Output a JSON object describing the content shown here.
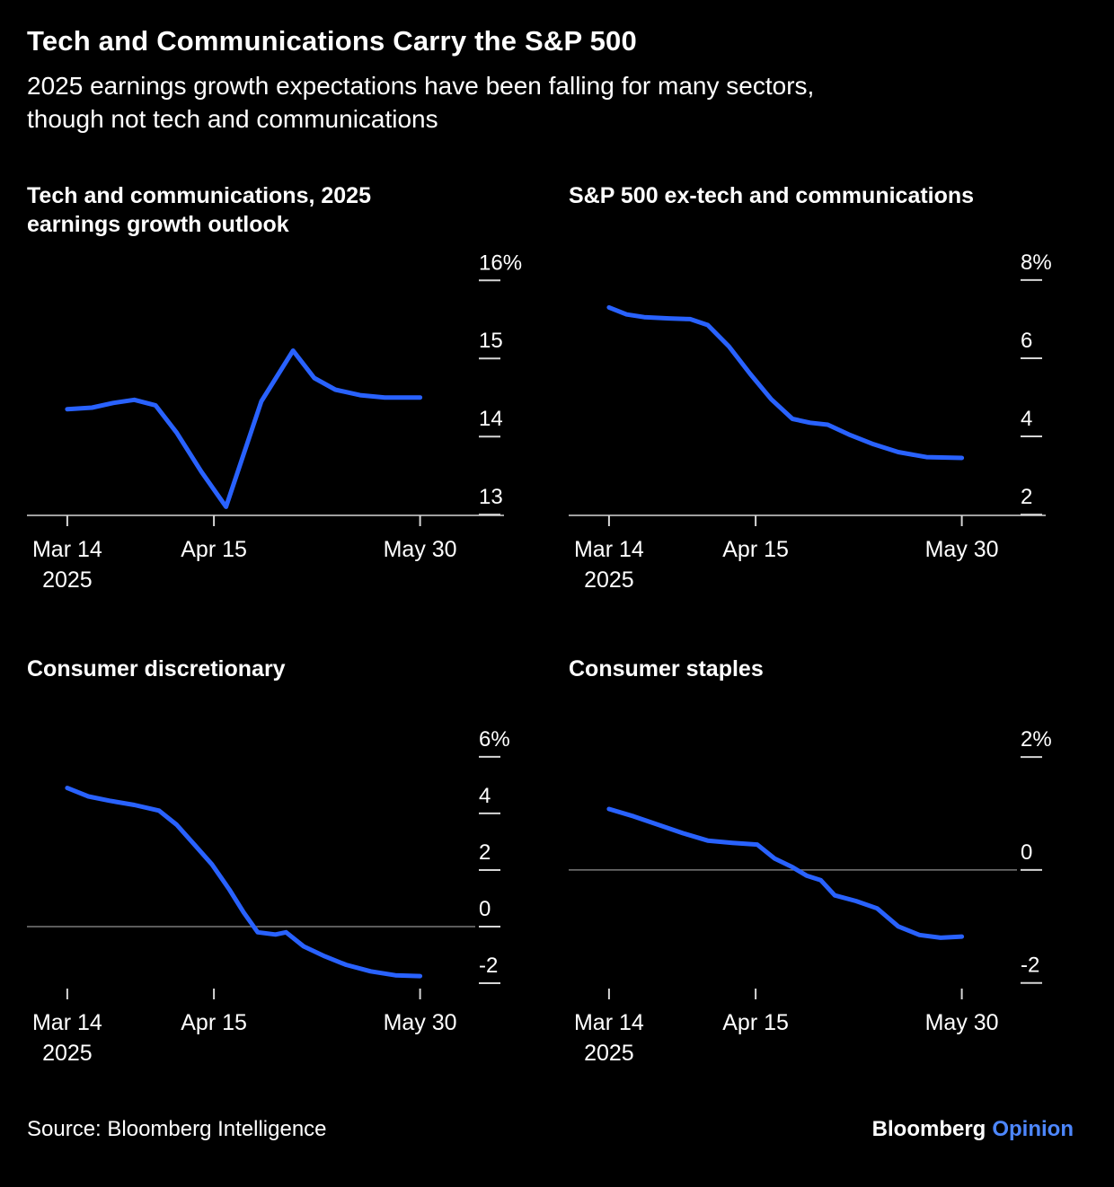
{
  "header": {
    "title": "Tech and Communications Carry the S&P 500",
    "subtitle": "2025 earnings growth expectations have been falling for many sectors,\nthough not tech and communications"
  },
  "footer": {
    "source": "Source: Bloomberg Intelligence",
    "brand": "Bloomberg",
    "brand_suffix": "Opinion"
  },
  "colors": {
    "background": "#000000",
    "text": "#ffffff",
    "line": "#2962ff",
    "axis": "#d6d6d6",
    "zero_line": "#7a7a7a",
    "brand_accent": "#4d87ff"
  },
  "chart_data": [
    {
      "type": "line",
      "title": "Tech and communications, 2025\nearnings growth outlook",
      "y_ticks": [
        {
          "value": 16,
          "label": "16%"
        },
        {
          "value": 15,
          "label": "15"
        },
        {
          "value": 14,
          "label": "14"
        },
        {
          "value": 13,
          "label": "13"
        }
      ],
      "ylim": [
        12.99,
        16.44
      ],
      "x_ticks": [
        {
          "t": 0,
          "lines": [
            "Mar 14",
            "2025"
          ]
        },
        {
          "t": 0.4156,
          "lines": [
            "Apr 15"
          ]
        },
        {
          "t": 1,
          "lines": [
            "May 30"
          ]
        }
      ],
      "bottom_axis": true,
      "zero_line": false,
      "points": [
        [
          0,
          14.35
        ],
        [
          0.07,
          14.37
        ],
        [
          0.13,
          14.43
        ],
        [
          0.19,
          14.47
        ],
        [
          0.25,
          14.4
        ],
        [
          0.31,
          14.05
        ],
        [
          0.38,
          13.55
        ],
        [
          0.45,
          13.1
        ],
        [
          0.55,
          14.45
        ],
        [
          0.64,
          15.1
        ],
        [
          0.7,
          14.75
        ],
        [
          0.76,
          14.6
        ],
        [
          0.83,
          14.53
        ],
        [
          0.9,
          14.5
        ],
        [
          1,
          14.5
        ]
      ]
    },
    {
      "type": "line",
      "title": "S&P 500 ex-tech and communications",
      "y_ticks": [
        {
          "value": 8,
          "label": "8%"
        },
        {
          "value": 6,
          "label": "6"
        },
        {
          "value": 4,
          "label": "4"
        },
        {
          "value": 2,
          "label": "2"
        }
      ],
      "ylim": [
        1.98,
        8.87
      ],
      "x_ticks": [
        {
          "t": 0,
          "lines": [
            "Mar 14",
            "2025"
          ]
        },
        {
          "t": 0.4156,
          "lines": [
            "Apr 15"
          ]
        },
        {
          "t": 1,
          "lines": [
            "May 30"
          ]
        }
      ],
      "bottom_axis": true,
      "zero_line": false,
      "points": [
        [
          0,
          7.3
        ],
        [
          0.05,
          7.12
        ],
        [
          0.1,
          7.05
        ],
        [
          0.17,
          7.02
        ],
        [
          0.23,
          7.0
        ],
        [
          0.28,
          6.85
        ],
        [
          0.34,
          6.3
        ],
        [
          0.4,
          5.6
        ],
        [
          0.46,
          4.95
        ],
        [
          0.52,
          4.45
        ],
        [
          0.57,
          4.35
        ],
        [
          0.62,
          4.3
        ],
        [
          0.68,
          4.05
        ],
        [
          0.75,
          3.8
        ],
        [
          0.82,
          3.6
        ],
        [
          0.9,
          3.47
        ],
        [
          1,
          3.45
        ]
      ]
    },
    {
      "type": "line",
      "title": "Consumer discretionary",
      "y_ticks": [
        {
          "value": 6,
          "label": "6%"
        },
        {
          "value": 4,
          "label": "4"
        },
        {
          "value": 2,
          "label": "2"
        },
        {
          "value": 0,
          "label": "0"
        },
        {
          "value": -2,
          "label": "-2"
        }
      ],
      "ylim": [
        -2.19,
        7.33
      ],
      "x_ticks": [
        {
          "t": 0,
          "lines": [
            "Mar 14",
            "2025"
          ]
        },
        {
          "t": 0.4156,
          "lines": [
            "Apr 15"
          ]
        },
        {
          "t": 1,
          "lines": [
            "May 30"
          ]
        }
      ],
      "bottom_axis": false,
      "zero_line": true,
      "points": [
        [
          0,
          4.9
        ],
        [
          0.06,
          4.6
        ],
        [
          0.12,
          4.45
        ],
        [
          0.19,
          4.3
        ],
        [
          0.26,
          4.1
        ],
        [
          0.31,
          3.6
        ],
        [
          0.36,
          2.9
        ],
        [
          0.41,
          2.2
        ],
        [
          0.46,
          1.3
        ],
        [
          0.5,
          0.5
        ],
        [
          0.54,
          -0.2
        ],
        [
          0.59,
          -0.28
        ],
        [
          0.62,
          -0.2
        ],
        [
          0.67,
          -0.7
        ],
        [
          0.73,
          -1.05
        ],
        [
          0.79,
          -1.35
        ],
        [
          0.86,
          -1.58
        ],
        [
          0.93,
          -1.72
        ],
        [
          1,
          -1.75
        ]
      ]
    },
    {
      "type": "line",
      "title": "Consumer staples",
      "y_ticks": [
        {
          "value": 2,
          "label": "2%"
        },
        {
          "value": 0,
          "label": "0"
        },
        {
          "value": -2,
          "label": "-2"
        }
      ],
      "ylim": [
        -2.1,
        2.67
      ],
      "x_ticks": [
        {
          "t": 0,
          "lines": [
            "Mar 14",
            "2025"
          ]
        },
        {
          "t": 0.4156,
          "lines": [
            "Apr 15"
          ]
        },
        {
          "t": 1,
          "lines": [
            "May 30"
          ]
        }
      ],
      "bottom_axis": false,
      "zero_line": true,
      "points": [
        [
          0,
          1.08
        ],
        [
          0.07,
          0.95
        ],
        [
          0.14,
          0.8
        ],
        [
          0.21,
          0.65
        ],
        [
          0.28,
          0.52
        ],
        [
          0.35,
          0.48
        ],
        [
          0.42,
          0.45
        ],
        [
          0.47,
          0.2
        ],
        [
          0.52,
          0.05
        ],
        [
          0.56,
          -0.1
        ],
        [
          0.6,
          -0.18
        ],
        [
          0.64,
          -0.45
        ],
        [
          0.7,
          -0.55
        ],
        [
          0.76,
          -0.68
        ],
        [
          0.82,
          -1.0
        ],
        [
          0.88,
          -1.15
        ],
        [
          0.94,
          -1.2
        ],
        [
          1,
          -1.18
        ]
      ]
    }
  ]
}
